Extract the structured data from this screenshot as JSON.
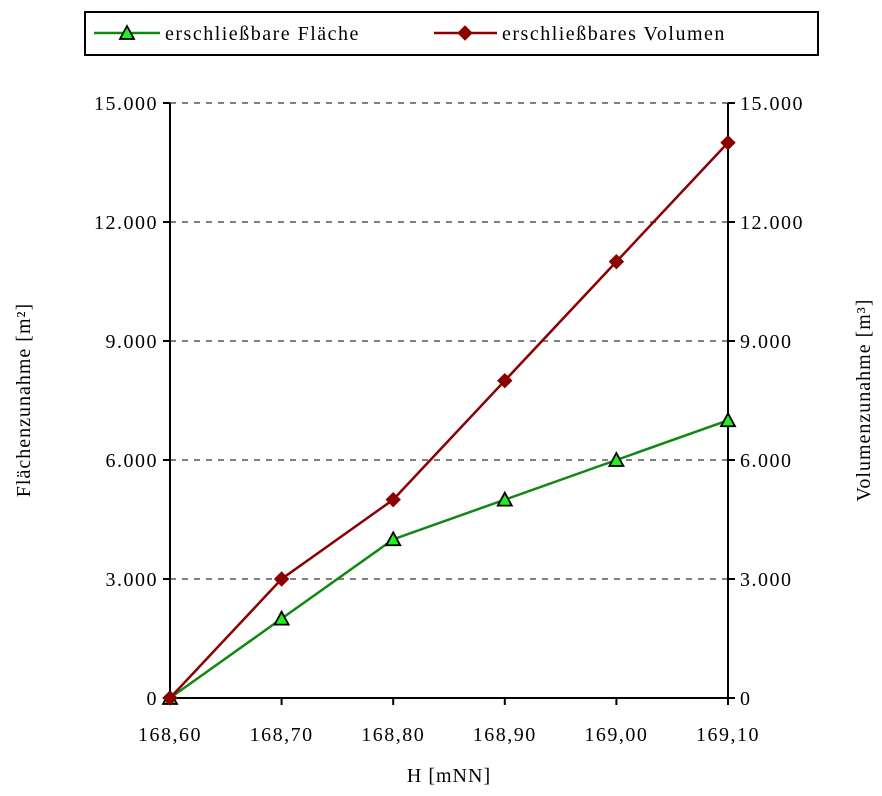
{
  "chart_data": {
    "type": "line",
    "x_categories": [
      "168,60",
      "168,70",
      "168,80",
      "168,90",
      "169,00",
      "169,10"
    ],
    "xlabel": "H [mNN]",
    "ylabel_left": "Flächenzunahme [m²]",
    "ylabel_right": "Volumenzunahme [m³]",
    "ylim": [
      0,
      15000
    ],
    "y_ticks": [
      0,
      3000,
      6000,
      9000,
      12000,
      15000
    ],
    "y_tick_labels": [
      "0",
      "3.000",
      "6.000",
      "9.000",
      "12.000",
      "15.000"
    ],
    "grid": "horizontal dashed",
    "legend_placement": "top",
    "series": [
      {
        "name": "erschließbare Fläche",
        "axis": "left",
        "color": "#118811",
        "marker": "triangle",
        "marker_fill": "#22ee22",
        "values": [
          0,
          2000,
          4000,
          5000,
          6000,
          7000
        ]
      },
      {
        "name": "erschließbares Volumen",
        "axis": "right",
        "color": "#8b0000",
        "marker": "diamond",
        "marker_fill": "#8b0000",
        "values": [
          0,
          3000,
          5000,
          8000,
          11000,
          14000
        ]
      }
    ]
  }
}
